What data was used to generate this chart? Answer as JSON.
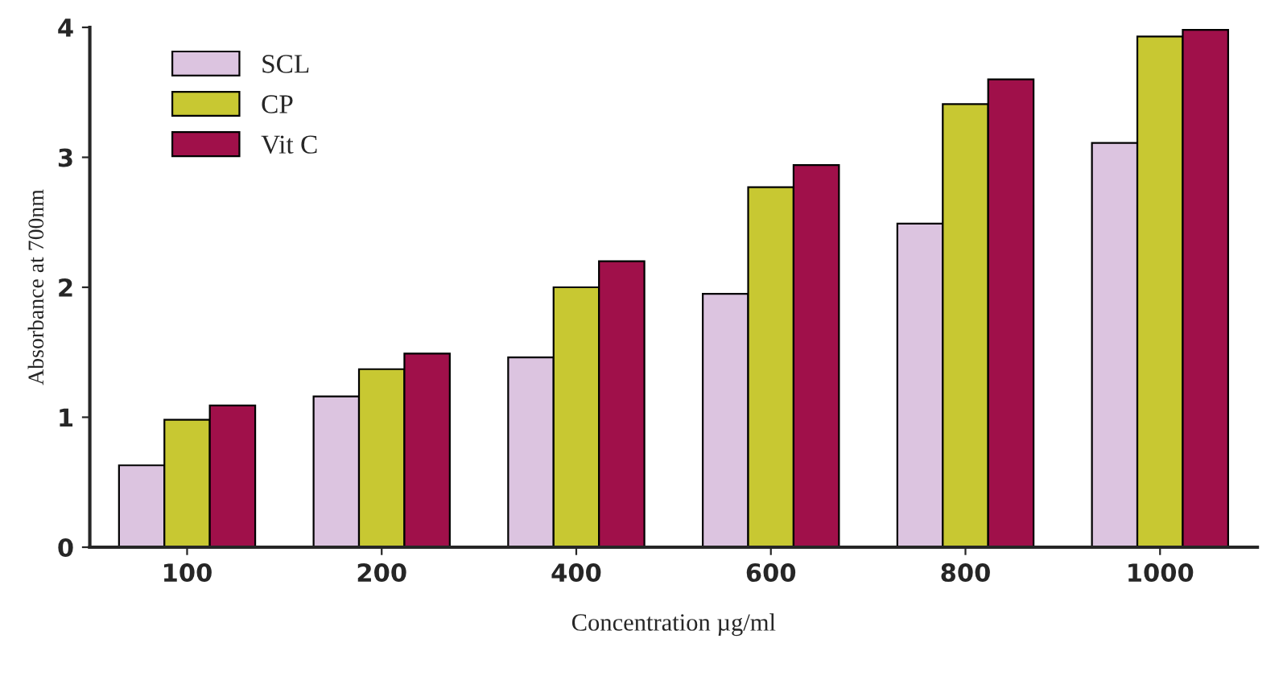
{
  "chart_data": {
    "type": "bar",
    "xlabel": "Concentration µg/ml",
    "ylabel": "Absorbance at 700nm",
    "categories": [
      "100",
      "200",
      "400",
      "600",
      "800",
      "1000"
    ],
    "series": [
      {
        "name": "SCL",
        "color": "#dcc4e0",
        "values": [
          0.63,
          1.16,
          1.46,
          1.95,
          2.49,
          3.11
        ]
      },
      {
        "name": "CP",
        "color": "#c8c832",
        "values": [
          0.98,
          1.37,
          2.0,
          2.77,
          3.41,
          3.93
        ]
      },
      {
        "name": "Vit C",
        "color": "#a0104a",
        "values": [
          1.09,
          1.49,
          2.2,
          2.94,
          3.6,
          3.98
        ]
      }
    ],
    "ylim": [
      0,
      4
    ],
    "yticks": [
      0,
      1,
      2,
      3,
      4
    ],
    "grid": false,
    "legend": "top left"
  }
}
